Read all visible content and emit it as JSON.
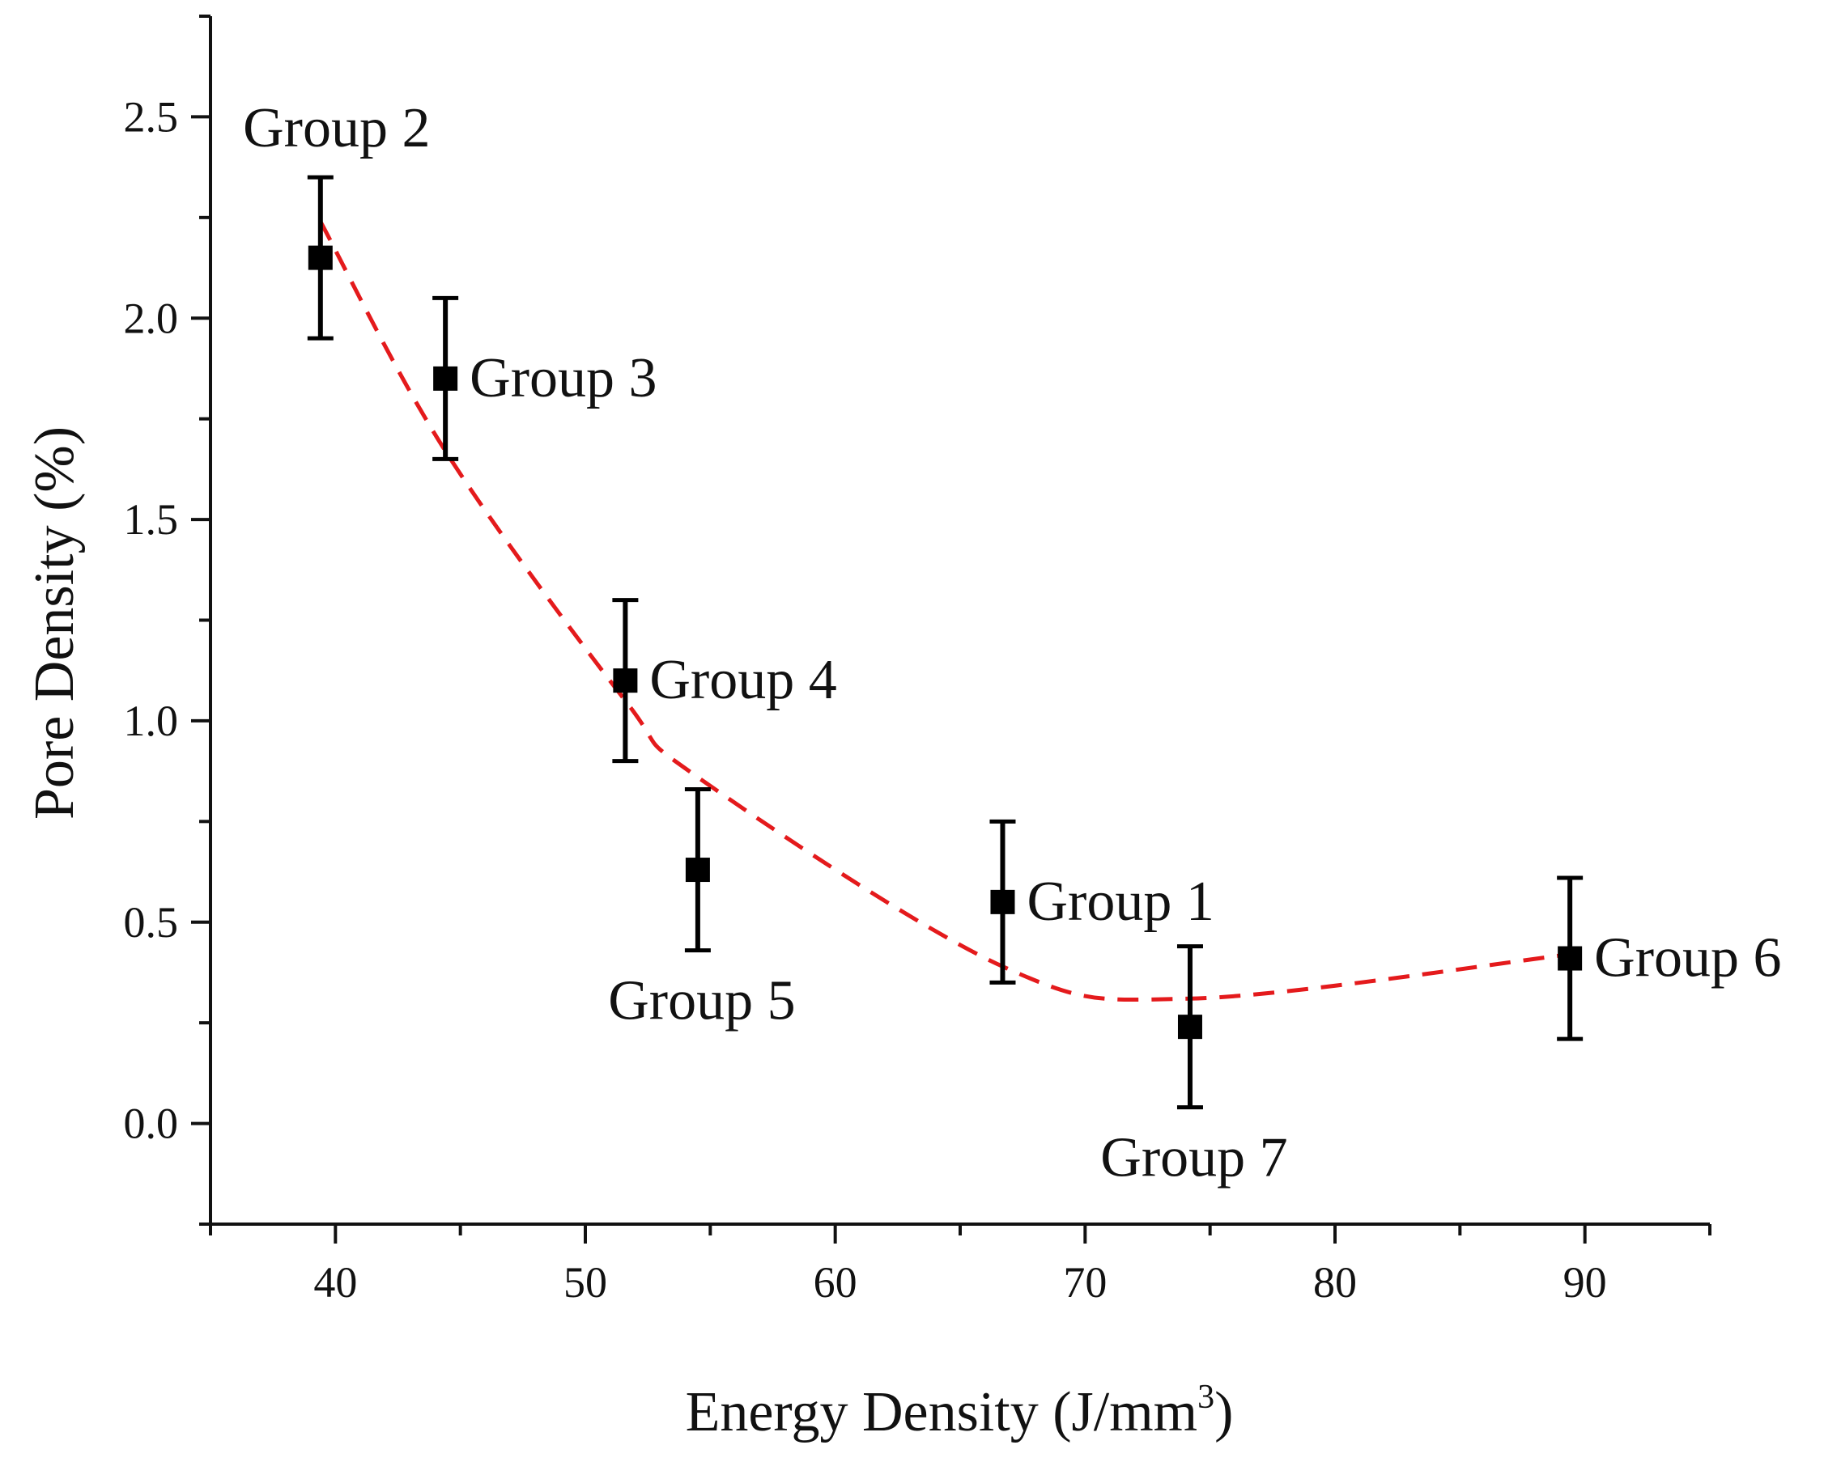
{
  "chart_data": {
    "type": "scatter",
    "xlabel": "Energy Density (J/mm",
    "xlabel_superscript": "3",
    "xlabel_suffix": ")",
    "ylabel": "Pore Density (%)",
    "xlim": [
      35,
      95
    ],
    "ylim": [
      -0.25,
      2.75
    ],
    "x_ticks": [
      "40",
      "50",
      "60",
      "70",
      "80",
      "90"
    ],
    "y_ticks": [
      "0.0",
      "0.5",
      "1.0",
      "1.5",
      "2.0",
      "2.5"
    ],
    "grid": false,
    "points": [
      {
        "label": "Group 2",
        "x": 39.4,
        "y": 2.15,
        "error": 0.2,
        "label_position": "above"
      },
      {
        "label": "Group 3",
        "x": 44.4,
        "y": 1.85,
        "error": 0.2,
        "label_position": "right"
      },
      {
        "label": "Group 4",
        "x": 51.6,
        "y": 1.1,
        "error": 0.2,
        "label_position": "right"
      },
      {
        "label": "Group 5",
        "x": 54.5,
        "y": 0.63,
        "error": 0.2,
        "label_position": "below"
      },
      {
        "label": "Group 1",
        "x": 66.7,
        "y": 0.55,
        "error": 0.2,
        "label_position": "right"
      },
      {
        "label": "Group 7",
        "x": 74.2,
        "y": 0.24,
        "error": 0.2,
        "label_position": "below"
      },
      {
        "label": "Group 6",
        "x": 89.4,
        "y": 0.41,
        "error": 0.2,
        "label_position": "right"
      }
    ],
    "fit": {
      "style": "dashed",
      "color": "#e41a1c",
      "x_range": [
        39.4,
        89.4
      ],
      "points": [
        {
          "x": 39.4,
          "y": 2.24
        },
        {
          "x": 44.4,
          "y": 1.67
        },
        {
          "x": 51.6,
          "y": 1.05
        },
        {
          "x": 54.5,
          "y": 0.86
        },
        {
          "x": 66.7,
          "y": 0.39
        },
        {
          "x": 74.2,
          "y": 0.31
        },
        {
          "x": 89.4,
          "y": 0.42
        }
      ]
    },
    "marker_color": "#000000"
  }
}
